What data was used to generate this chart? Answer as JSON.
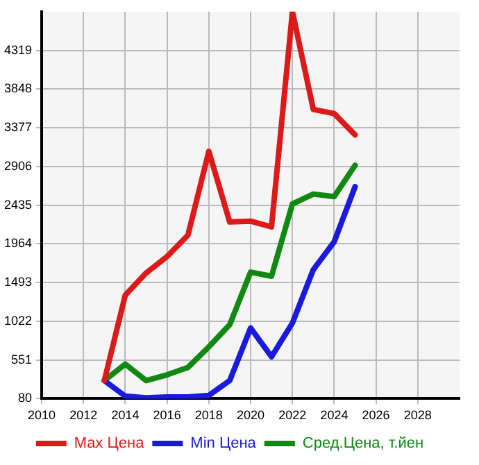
{
  "chart_data": {
    "type": "line",
    "x": [
      2013,
      2014,
      2015,
      2016,
      2017,
      2018,
      2019,
      2020,
      2021,
      2022,
      2023,
      2024,
      2025
    ],
    "series": [
      {
        "name": "Max Цена",
        "color": "#dd1a1a",
        "values": [
          300,
          1340,
          1610,
          1810,
          2070,
          3090,
          2230,
          2240,
          2170,
          4790,
          3600,
          3550,
          3290
        ]
      },
      {
        "name": "Min Цена",
        "color": "#1a1add",
        "values": [
          300,
          110,
          90,
          100,
          100,
          120,
          300,
          940,
          590,
          1000,
          1650,
          1990,
          2660
        ]
      },
      {
        "name": "Сред.Цена, т.йен",
        "color": "#118811",
        "values": [
          300,
          500,
          300,
          370,
          460,
          710,
          980,
          1620,
          1570,
          2450,
          2570,
          2540,
          2920
        ]
      }
    ],
    "xlim": [
      2010,
      2030
    ],
    "xticks": [
      2010,
      2012,
      2014,
      2016,
      2018,
      2020,
      2022,
      2024,
      2026,
      2028
    ],
    "ylim": [
      80,
      4790
    ],
    "yticks": [
      80,
      551,
      1022,
      1493,
      1964,
      2435,
      2906,
      3377,
      3848,
      4319
    ],
    "grid": true,
    "legend": "bottom",
    "marker": "none",
    "line_style": "solid"
  }
}
